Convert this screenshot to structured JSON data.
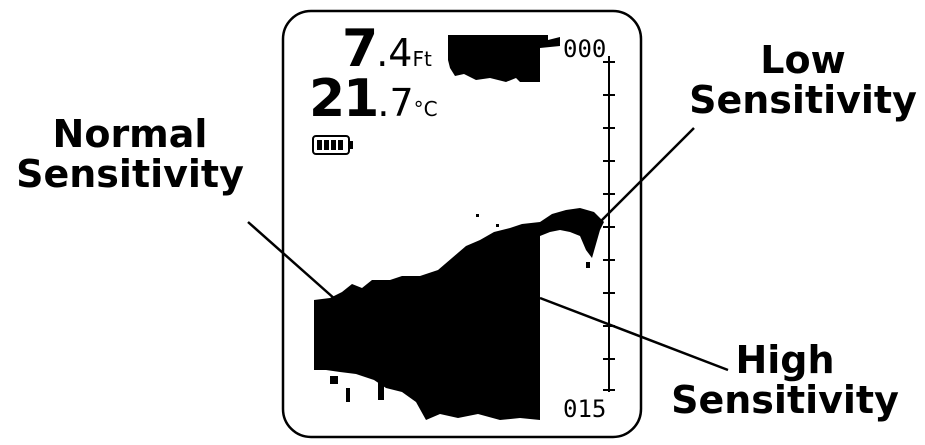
{
  "display": {
    "depth": {
      "whole": "7",
      "fraction": ".4",
      "unit": "Ft"
    },
    "temperature": {
      "whole": "21",
      "fraction": ".7",
      "unit": "°C"
    },
    "battery": "battery-icon",
    "scale": {
      "top": "000",
      "bottom": "015"
    }
  },
  "callouts": {
    "normal": [
      "Normal",
      "Sensitivity"
    ],
    "low": [
      "Low",
      "Sensitivity"
    ],
    "high": [
      "High",
      "Sensitivity"
    ]
  }
}
